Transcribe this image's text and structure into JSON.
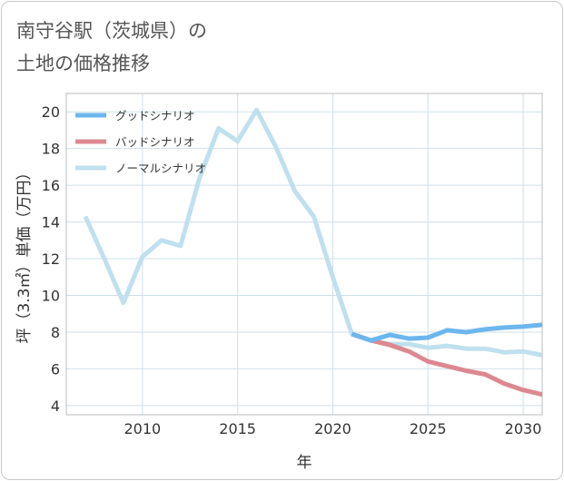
{
  "title_line1": "南守谷駅（茨城県）の",
  "title_line2": "土地の価格推移",
  "chart_data": {
    "type": "line",
    "title": "南守谷駅（茨城県）の土地の価格推移",
    "xlabel": "年",
    "ylabel": "坪（3.3㎡）単価（万円）",
    "xlim": [
      2006,
      2031
    ],
    "ylim": [
      3.5,
      21
    ],
    "xticks": [
      2010,
      2015,
      2020,
      2025,
      2030
    ],
    "yticks": [
      4,
      6,
      8,
      10,
      12,
      14,
      16,
      18,
      20
    ],
    "legend_position": "top-left",
    "series": [
      {
        "name": "グッドシナリオ",
        "color": "#6cb6ee",
        "x": [
          2021,
          2022,
          2023,
          2024,
          2025,
          2026,
          2027,
          2028,
          2029,
          2030,
          2031
        ],
        "y": [
          7.9,
          7.55,
          7.85,
          7.65,
          7.7,
          8.1,
          8.0,
          8.15,
          8.25,
          8.3,
          8.4
        ]
      },
      {
        "name": "バッドシナリオ",
        "color": "#dd8890",
        "x": [
          2021,
          2022,
          2023,
          2024,
          2025,
          2026,
          2027,
          2028,
          2029,
          2030,
          2031
        ],
        "y": [
          7.9,
          7.55,
          7.3,
          6.95,
          6.4,
          6.15,
          5.9,
          5.7,
          5.2,
          4.85,
          4.6
        ]
      },
      {
        "name": "ノーマルシナリオ",
        "color": "#bfe0ee",
        "x": [
          2007,
          2008,
          2009,
          2010,
          2011,
          2012,
          2013,
          2014,
          2015,
          2016,
          2017,
          2018,
          2019,
          2020,
          2021,
          2022,
          2023,
          2024,
          2025,
          2026,
          2027,
          2028,
          2029,
          2030,
          2031
        ],
        "y": [
          14.3,
          12.0,
          9.6,
          12.1,
          13.0,
          12.7,
          16.4,
          19.1,
          18.4,
          20.1,
          18.1,
          15.7,
          14.3,
          11.0,
          7.9,
          7.55,
          7.35,
          7.35,
          7.15,
          7.25,
          7.1,
          7.1,
          6.9,
          6.95,
          6.75
        ]
      }
    ]
  }
}
